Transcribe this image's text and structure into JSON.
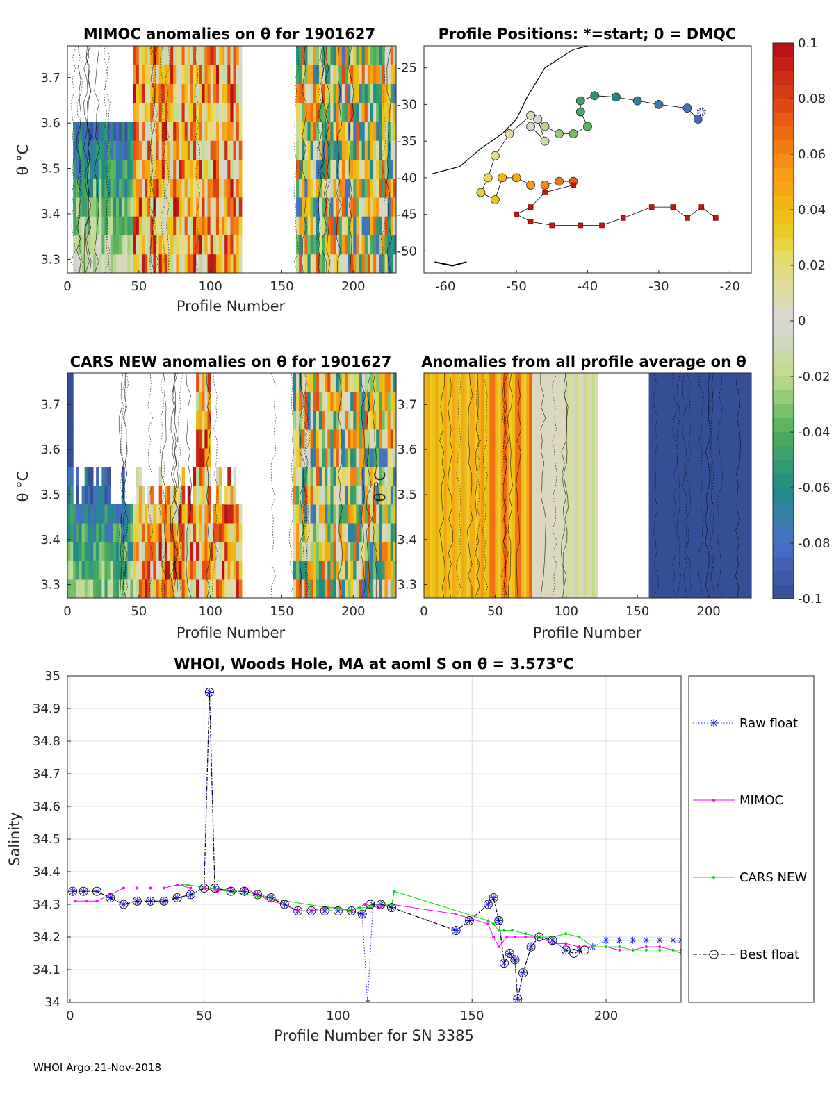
{
  "footer": "WHOI Argo:21-Nov-2018",
  "colorbar": {
    "ticks": [
      "0.1",
      "0.08",
      "0.06",
      "0.04",
      "0.02",
      "0",
      "-0.02",
      "-0.04",
      "-0.06",
      "-0.08",
      "-0.1"
    ],
    "range": [
      -0.1,
      0.1
    ]
  },
  "chart_data": [
    {
      "id": "mimoc",
      "type": "heatmap",
      "title": "MIMOC anomalies on θ  for 1901627",
      "xlabel": "Profile Number",
      "ylabel": "θ °C",
      "xlim": [
        0,
        230
      ],
      "ylim": [
        3.27,
        3.77
      ],
      "xticks": [
        "0",
        "50",
        "100",
        "150",
        "200"
      ],
      "yticks": [
        "3.3",
        "3.4",
        "3.5",
        "3.6",
        "3.7"
      ],
      "profile_range_start": 0,
      "profile_range_end": 228,
      "gaps": [
        [
          0,
          2
        ],
        [
          122,
          144
        ],
        [
          146,
          158
        ]
      ]
    },
    {
      "id": "positions",
      "type": "scatter",
      "title": "Profile Positions: *=start; 0 = DMQC",
      "xlabel": "",
      "ylabel": "",
      "xlim": [
        -63,
        -17
      ],
      "ylim": [
        -53,
        -22
      ],
      "xticks": [
        "-60",
        "-50",
        "-40",
        "-30",
        "-20"
      ],
      "yticks": [
        "-25",
        "-30",
        "-35",
        "-40",
        "-45",
        "-50"
      ],
      "start": [
        -24,
        -31
      ],
      "track_dmqc": [
        [
          -24,
          -31
        ],
        [
          -24.5,
          -32
        ],
        [
          -26,
          -30.5
        ],
        [
          -30,
          -30
        ],
        [
          -33,
          -29.5
        ],
        [
          -36,
          -29
        ],
        [
          -39,
          -28.8
        ],
        [
          -41,
          -29.5
        ],
        [
          -41,
          -31
        ],
        [
          -40,
          -33
        ],
        [
          -42,
          -34
        ],
        [
          -44,
          -34
        ],
        [
          -46,
          -33
        ],
        [
          -47,
          -32
        ],
        [
          -46,
          -35
        ],
        [
          -48,
          -33
        ],
        [
          -47,
          -32
        ],
        [
          -48,
          -31.5
        ],
        [
          -51,
          -34
        ],
        [
          -53,
          -37
        ],
        [
          -54,
          -40
        ],
        [
          -55,
          -42
        ],
        [
          -53,
          -43
        ],
        [
          -52,
          -40
        ],
        [
          -50,
          -40
        ],
        [
          -48,
          -41
        ],
        [
          -46,
          -41
        ],
        [
          -44,
          -40.5
        ],
        [
          -42,
          -40.5
        ]
      ],
      "track_raw": [
        [
          -42,
          -41
        ],
        [
          -46,
          -42
        ],
        [
          -48,
          -44
        ],
        [
          -50,
          -45
        ],
        [
          -48,
          -46
        ],
        [
          -45,
          -46.5
        ],
        [
          -41,
          -46.5
        ],
        [
          -38,
          -46.5
        ],
        [
          -35,
          -45.5
        ],
        [
          -31,
          -44
        ],
        [
          -28,
          -44
        ],
        [
          -26,
          -45.5
        ],
        [
          -24,
          -44
        ],
        [
          -22,
          -45.5
        ]
      ],
      "coast": [
        [
          -62,
          -39.5
        ],
        [
          -58,
          -38.5
        ],
        [
          -55,
          -36
        ],
        [
          -52,
          -34
        ],
        [
          -50,
          -32
        ],
        [
          -48.5,
          -29
        ],
        [
          -46,
          -25
        ],
        [
          -42,
          -22.5
        ],
        [
          -40,
          -22
        ]
      ],
      "island": [
        [
          -61.5,
          -51.5
        ],
        [
          -59,
          -52
        ],
        [
          -57,
          -51.5
        ]
      ]
    },
    {
      "id": "cars",
      "type": "heatmap",
      "title": "CARS NEW anomalies on θ for 1901627",
      "xlabel": "Profile Number",
      "ylabel": "θ °C",
      "xlim": [
        0,
        230
      ],
      "ylim": [
        3.27,
        3.77
      ],
      "xticks": [
        "0",
        "50",
        "100",
        "150",
        "200"
      ],
      "yticks": [
        "3.3",
        "3.4",
        "3.5",
        "3.6",
        "3.7"
      ],
      "profile_range_start": 0,
      "profile_range_end": 228,
      "gaps": [
        [
          122,
          144
        ],
        [
          146,
          156
        ]
      ]
    },
    {
      "id": "allavg",
      "type": "heatmap",
      "title": "Anomalies from all profile average on θ",
      "xlabel": "Profile Number",
      "ylabel": "θ °C",
      "xlim": [
        0,
        230
      ],
      "ylim": [
        3.27,
        3.77
      ],
      "xticks": [
        "0",
        "50",
        "100",
        "150",
        "200"
      ],
      "yticks": [
        "3.3",
        "3.4",
        "3.5",
        "3.6",
        "3.7"
      ],
      "profile_range_start": 0,
      "profile_range_end": 228,
      "gaps": [
        [
          122,
          144
        ],
        [
          146,
          156
        ]
      ]
    },
    {
      "id": "salinity",
      "type": "line",
      "title": "WHOI, Woods Hole, MA at aoml S on θ = 3.573°C",
      "xlabel": "Profile Number for SN 3385",
      "ylabel": "Salinity",
      "xlim": [
        -1,
        228
      ],
      "ylim": [
        34,
        35
      ],
      "xticks": [
        "0",
        "50",
        "100",
        "150",
        "200"
      ],
      "yticks": [
        "34",
        "34.1",
        "34.2",
        "34.3",
        "34.4",
        "34.5",
        "34.6",
        "34.7",
        "34.8",
        "34.9",
        "35"
      ],
      "legend_position": "right, outside",
      "series": [
        {
          "name": "Raw float",
          "color": "#1f1fff",
          "x": [
            1,
            5,
            10,
            15,
            20,
            25,
            30,
            35,
            40,
            45,
            50,
            52,
            54,
            60,
            65,
            70,
            75,
            80,
            85,
            90,
            95,
            100,
            105,
            109,
            111,
            113,
            116,
            120,
            144,
            149,
            156,
            158,
            160,
            162,
            164,
            166,
            167,
            169,
            172,
            175,
            180,
            185,
            190,
            195,
            200,
            205,
            210,
            215,
            220,
            225,
            228
          ],
          "y": [
            34.34,
            34.34,
            34.34,
            34.32,
            34.3,
            34.31,
            34.31,
            34.31,
            34.32,
            34.33,
            34.35,
            34.95,
            34.35,
            34.34,
            34.34,
            34.33,
            34.32,
            34.3,
            34.28,
            34.28,
            34.28,
            34.28,
            34.28,
            34.27,
            34.0,
            34.3,
            34.3,
            34.29,
            34.22,
            34.25,
            34.3,
            34.32,
            34.25,
            34.12,
            34.15,
            34.13,
            34.01,
            34.09,
            34.17,
            34.2,
            34.19,
            34.16,
            34.16,
            34.17,
            34.19,
            34.19,
            34.19,
            34.19,
            34.19,
            34.19,
            34.19
          ]
        },
        {
          "name": "MIMOC",
          "color": "#ff00ff",
          "x": [
            2,
            6,
            10,
            15,
            20,
            25,
            30,
            35,
            40,
            45,
            50,
            55,
            60,
            65,
            70,
            75,
            80,
            85,
            90,
            95,
            100,
            105,
            110,
            115,
            120,
            144,
            156,
            158,
            160,
            163,
            166,
            170,
            175,
            180,
            185,
            190,
            195,
            200,
            205,
            210,
            215,
            220,
            225,
            228
          ],
          "y": [
            34.31,
            34.31,
            34.31,
            34.33,
            34.35,
            34.35,
            34.35,
            34.35,
            34.36,
            34.35,
            34.35,
            34.34,
            34.35,
            34.35,
            34.33,
            34.31,
            34.3,
            34.28,
            34.28,
            34.29,
            34.29,
            34.28,
            34.3,
            34.29,
            34.3,
            34.27,
            34.24,
            34.2,
            34.17,
            34.2,
            34.2,
            34.2,
            34.2,
            34.18,
            34.18,
            34.17,
            34.17,
            34.17,
            34.16,
            34.16,
            34.17,
            34.17,
            34.16,
            34.16
          ]
        },
        {
          "name": "CARS NEW",
          "color": "#00e000",
          "x": [
            42,
            44,
            96,
            100,
            104,
            108,
            112,
            116,
            120,
            121,
            156,
            158,
            160,
            162,
            165,
            170,
            175,
            180,
            185,
            190,
            195,
            200,
            205,
            210,
            215,
            220,
            225,
            228
          ],
          "y": [
            34.36,
            34.36,
            34.29,
            34.29,
            34.28,
            34.29,
            34.29,
            34.3,
            34.3,
            34.34,
            34.25,
            34.24,
            34.22,
            34.22,
            34.22,
            34.21,
            34.2,
            34.2,
            34.21,
            34.2,
            34.17,
            34.17,
            34.17,
            34.16,
            34.16,
            34.16,
            34.16,
            34.15
          ]
        },
        {
          "name": "Best float",
          "color": "#000000",
          "x": [
            1,
            5,
            10,
            15,
            20,
            25,
            30,
            35,
            40,
            45,
            50,
            52,
            54,
            60,
            65,
            70,
            75,
            80,
            85,
            90,
            95,
            100,
            105,
            109,
            112,
            116,
            120,
            144,
            149,
            156,
            158,
            160,
            162,
            164,
            166,
            167,
            169,
            172,
            175,
            180,
            185,
            188,
            192
          ],
          "y": [
            34.34,
            34.34,
            34.34,
            34.32,
            34.3,
            34.31,
            34.31,
            34.31,
            34.32,
            34.33,
            34.35,
            34.95,
            34.35,
            34.34,
            34.34,
            34.33,
            34.32,
            34.3,
            34.28,
            34.28,
            34.28,
            34.28,
            34.28,
            34.27,
            34.3,
            34.3,
            34.29,
            34.22,
            34.25,
            34.3,
            34.32,
            34.25,
            34.12,
            34.15,
            34.13,
            34.01,
            34.09,
            34.17,
            34.2,
            34.19,
            34.16,
            34.15,
            34.16
          ]
        }
      ]
    }
  ]
}
